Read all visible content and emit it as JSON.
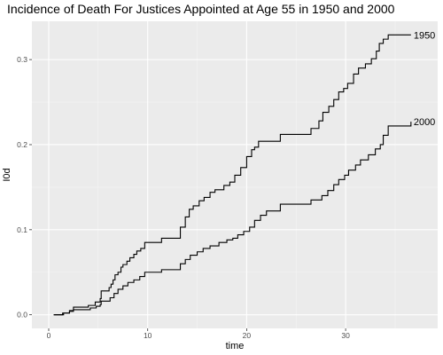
{
  "chart_data": {
    "type": "line",
    "title": "Incidence of Death For Justices Appointed at Age 55 in 1950 and 2000",
    "xlabel": "time",
    "ylabel": "I0d",
    "xlim": [
      -1.7,
      39.3
    ],
    "ylim": [
      -0.016,
      0.345
    ],
    "x_ticks": [
      0,
      10,
      20,
      30
    ],
    "x_tick_labels": [
      "0",
      "10",
      "20",
      "30"
    ],
    "y_ticks": [
      0.0,
      0.1,
      0.2,
      0.3
    ],
    "y_tick_labels": [
      "0.0",
      "0.1",
      "0.2",
      "0.3"
    ],
    "grid": true,
    "legend": "none",
    "colors": {
      "panel_background": "#ebebeb",
      "grid_major": "#ffffff",
      "grid_minor": "#f5f5f5",
      "line": "#000000",
      "tick_text": "#4d4d4d"
    },
    "series": [
      {
        "name": "1950",
        "label": "1950",
        "x": [
          0.5,
          1.4,
          2.1,
          2.5,
          4.0,
          4.7,
          5.2,
          5.3,
          6.0,
          6.1,
          6.3,
          6.5,
          6.7,
          7.0,
          7.3,
          7.5,
          7.9,
          8.2,
          8.6,
          8.9,
          9.3,
          9.7,
          11.4,
          13.3,
          13.8,
          14.2,
          14.6,
          15.2,
          15.7,
          16.3,
          16.8,
          17.7,
          18.3,
          18.8,
          19.4,
          20.0,
          20.5,
          20.8,
          21.2,
          21.8,
          23.4,
          26.5,
          27.3,
          27.7,
          28.3,
          28.8,
          29.3,
          29.8,
          30.2,
          30.8,
          31.3,
          32.0,
          32.6,
          33.1,
          33.4,
          33.8,
          34.3,
          36.6
        ],
        "y": [
          0.0,
          0.002,
          0.005,
          0.009,
          0.011,
          0.015,
          0.019,
          0.028,
          0.028,
          0.032,
          0.036,
          0.041,
          0.047,
          0.05,
          0.056,
          0.059,
          0.063,
          0.067,
          0.071,
          0.075,
          0.078,
          0.085,
          0.09,
          0.103,
          0.115,
          0.124,
          0.128,
          0.134,
          0.138,
          0.144,
          0.147,
          0.152,
          0.156,
          0.164,
          0.173,
          0.186,
          0.194,
          0.197,
          0.204,
          0.204,
          0.212,
          0.219,
          0.228,
          0.238,
          0.245,
          0.253,
          0.262,
          0.266,
          0.272,
          0.283,
          0.29,
          0.295,
          0.301,
          0.31,
          0.319,
          0.324,
          0.329,
          0.329
        ]
      },
      {
        "name": "2000",
        "label": "2000",
        "x": [
          0.5,
          1.5,
          2.1,
          2.5,
          4.2,
          4.8,
          5.2,
          5.3,
          6.2,
          6.6,
          7.0,
          7.5,
          8.0,
          8.6,
          9.2,
          9.7,
          11.4,
          13.3,
          13.8,
          14.3,
          15.0,
          15.6,
          16.3,
          17.2,
          18.0,
          18.6,
          19.1,
          19.7,
          20.3,
          20.8,
          21.4,
          22.0,
          23.4,
          26.5,
          27.6,
          28.2,
          28.8,
          29.3,
          29.9,
          30.3,
          31.0,
          31.5,
          32.3,
          33.0,
          33.5,
          33.8,
          34.3,
          36.6
        ],
        "y": [
          0.0,
          0.002,
          0.004,
          0.006,
          0.008,
          0.01,
          0.012,
          0.016,
          0.02,
          0.025,
          0.03,
          0.034,
          0.038,
          0.041,
          0.045,
          0.05,
          0.053,
          0.06,
          0.065,
          0.07,
          0.074,
          0.078,
          0.081,
          0.085,
          0.088,
          0.09,
          0.094,
          0.098,
          0.103,
          0.111,
          0.117,
          0.122,
          0.13,
          0.135,
          0.14,
          0.146,
          0.153,
          0.159,
          0.164,
          0.17,
          0.176,
          0.182,
          0.188,
          0.195,
          0.2,
          0.211,
          0.222,
          0.227
        ]
      }
    ]
  }
}
